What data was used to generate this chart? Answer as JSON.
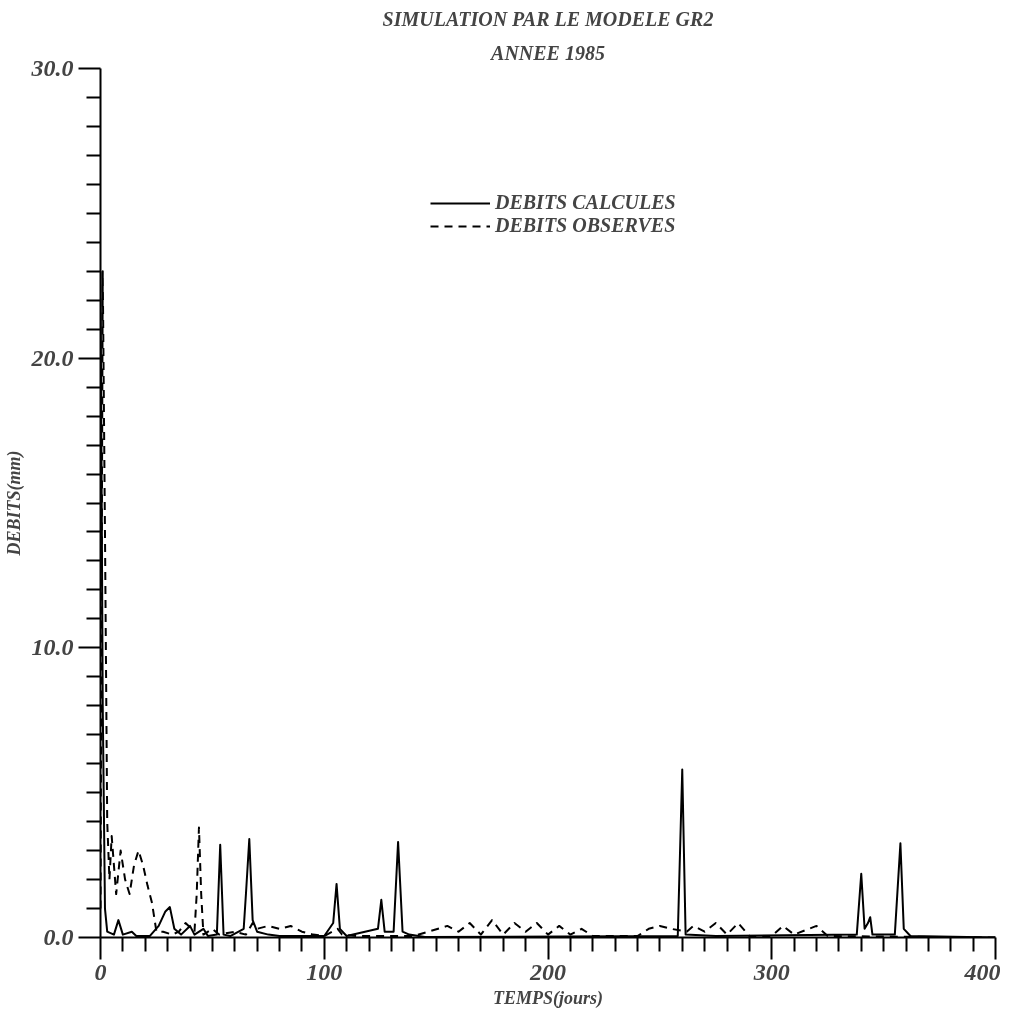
{
  "chart_data": {
    "type": "line",
    "title": "SIMULATION PAR LE MODELE GR2",
    "subtitle": "ANNEE 1985",
    "xlabel": "TEMPS(jours)",
    "ylabel": "DEBITS(mm)",
    "xlim": [
      0,
      400
    ],
    "ylim": [
      0,
      30
    ],
    "xticks": [
      0,
      100,
      200,
      300,
      400,
      {
        "value": 10,
        "label": null
      },
      {
        "value": 20,
        "label": null
      },
      {
        "value": 30,
        "label": null
      },
      {
        "value": 40,
        "label": null
      },
      {
        "value": 50,
        "label": null
      },
      {
        "value": 60,
        "label": null
      },
      {
        "value": 70,
        "label": null
      },
      {
        "value": 80,
        "label": null
      },
      {
        "value": 90,
        "label": null
      },
      {
        "value": 110,
        "label": null
      },
      {
        "value": 120,
        "label": null
      },
      {
        "value": 130,
        "label": null
      },
      {
        "value": 140,
        "label": null
      },
      {
        "value": 150,
        "label": null
      },
      {
        "value": 160,
        "label": null
      },
      {
        "value": 170,
        "label": null
      },
      {
        "value": 180,
        "label": null
      },
      {
        "value": 190,
        "label": null
      },
      {
        "value": 210,
        "label": null
      },
      {
        "value": 220,
        "label": null
      },
      {
        "value": 230,
        "label": null
      },
      {
        "value": 240,
        "label": null
      },
      {
        "value": 250,
        "label": null
      },
      {
        "value": 260,
        "label": null
      },
      {
        "value": 270,
        "label": null
      },
      {
        "value": 280,
        "label": null
      },
      {
        "value": 290,
        "label": null
      },
      {
        "value": 310,
        "label": null
      },
      {
        "value": 320,
        "label": null
      },
      {
        "value": 330,
        "label": null
      },
      {
        "value": 340,
        "label": null
      },
      {
        "value": 350,
        "label": null
      },
      {
        "value": 360,
        "label": null
      },
      {
        "value": 370,
        "label": null
      },
      {
        "value": 380,
        "label": null
      },
      {
        "value": 390,
        "label": null
      }
    ],
    "yticks": [
      {
        "value": 0,
        "label": "0.0"
      },
      {
        "value": 10,
        "label": "10.0"
      },
      {
        "value": 20,
        "label": "20.0"
      },
      {
        "value": 30,
        "label": "30.0"
      },
      {
        "value": 1,
        "label": null
      },
      {
        "value": 2,
        "label": null
      },
      {
        "value": 3,
        "label": null
      },
      {
        "value": 4,
        "label": null
      },
      {
        "value": 5,
        "label": null
      },
      {
        "value": 6,
        "label": null
      },
      {
        "value": 7,
        "label": null
      },
      {
        "value": 8,
        "label": null
      },
      {
        "value": 9,
        "label": null
      },
      {
        "value": 11,
        "label": null
      },
      {
        "value": 12,
        "label": null
      },
      {
        "value": 13,
        "label": null
      },
      {
        "value": 14,
        "label": null
      },
      {
        "value": 15,
        "label": null
      },
      {
        "value": 16,
        "label": null
      },
      {
        "value": 17,
        "label": null
      },
      {
        "value": 18,
        "label": null
      },
      {
        "value": 19,
        "label": null
      },
      {
        "value": 21,
        "label": null
      },
      {
        "value": 22,
        "label": null
      },
      {
        "value": 23,
        "label": null
      },
      {
        "value": 24,
        "label": null
      },
      {
        "value": 25,
        "label": null
      },
      {
        "value": 26,
        "label": null
      },
      {
        "value": 27,
        "label": null
      },
      {
        "value": 28,
        "label": null
      },
      {
        "value": 29,
        "label": null
      }
    ],
    "grid": false,
    "legend": "top right",
    "marker": "none",
    "series": [
      {
        "name": "DEBITS CALCULES",
        "color": "#000000",
        "line_style": "solid",
        "x": [
          0,
          1,
          2,
          3,
          6,
          8,
          10,
          14,
          16,
          22,
          26,
          29,
          31,
          33,
          36,
          40,
          42,
          46,
          48,
          52,
          53.5,
          55,
          58,
          64,
          65,
          66.5,
          68,
          70,
          75,
          80,
          100,
          104,
          105.5,
          107,
          110,
          124,
          125.5,
          127,
          131,
          133,
          135,
          138,
          145,
          258,
          260,
          261.5,
          275,
          338,
          340,
          341.5,
          343,
          344,
          345,
          355,
          357.5,
          359,
          362,
          400
        ],
        "values": [
          23,
          8,
          1,
          0.2,
          0.1,
          0.6,
          0.1,
          0.2,
          0.05,
          0.05,
          0.4,
          0.9,
          1.05,
          0.3,
          0.1,
          0.4,
          0.1,
          0.3,
          0.05,
          0.1,
          3.2,
          0.1,
          0.05,
          0.3,
          1.5,
          3.4,
          0.6,
          0.2,
          0.1,
          0.05,
          0.05,
          0.5,
          1.85,
          0.3,
          0.05,
          0.3,
          1.3,
          0.2,
          0.2,
          3.3,
          0.2,
          0.1,
          0.02,
          0.05,
          5.8,
          0.1,
          0.05,
          0.1,
          2.2,
          0.3,
          0.5,
          0.7,
          0.1,
          0.1,
          3.25,
          0.3,
          0.05,
          0
        ]
      },
      {
        "name": "DEBITS OBSERVES",
        "color": "#000000",
        "line_style": "dashed",
        "x": [
          0,
          1,
          2,
          3,
          4,
          5,
          6,
          7,
          9,
          11,
          13,
          15,
          17,
          19,
          21,
          23,
          25,
          28,
          32,
          35,
          38,
          42,
          43,
          44,
          45,
          46,
          50,
          53,
          60,
          65,
          68,
          70,
          75,
          80,
          85,
          90,
          95,
          100,
          106,
          108,
          115,
          140,
          155,
          160,
          165,
          170,
          175,
          180,
          185,
          190,
          195,
          200,
          205,
          210,
          215,
          220,
          240,
          245,
          250,
          255,
          262,
          265,
          270,
          275,
          280,
          285,
          290,
          300,
          305,
          310,
          320,
          325,
          400
        ],
        "values": [
          1,
          23,
          14,
          4,
          2,
          3.5,
          2.5,
          1.5,
          3,
          2,
          1.5,
          2.5,
          3,
          2.5,
          1.8,
          1.2,
          0.2,
          0.2,
          0.1,
          0.2,
          0.5,
          0.2,
          1.5,
          3.8,
          1.5,
          0.1,
          0.3,
          0.1,
          0.2,
          0.1,
          0.5,
          0.3,
          0.4,
          0.3,
          0.4,
          0.2,
          0.1,
          0.05,
          0.3,
          0.1,
          0.05,
          0.05,
          0.4,
          0.2,
          0.5,
          0.1,
          0.6,
          0.1,
          0.5,
          0.2,
          0.5,
          0.1,
          0.4,
          0.1,
          0.3,
          0.05,
          0.05,
          0.3,
          0.4,
          0.3,
          0.2,
          0.4,
          0.2,
          0.5,
          0.1,
          0.5,
          0.05,
          0.05,
          0.4,
          0.1,
          0.4,
          0.05,
          0
        ]
      }
    ]
  }
}
